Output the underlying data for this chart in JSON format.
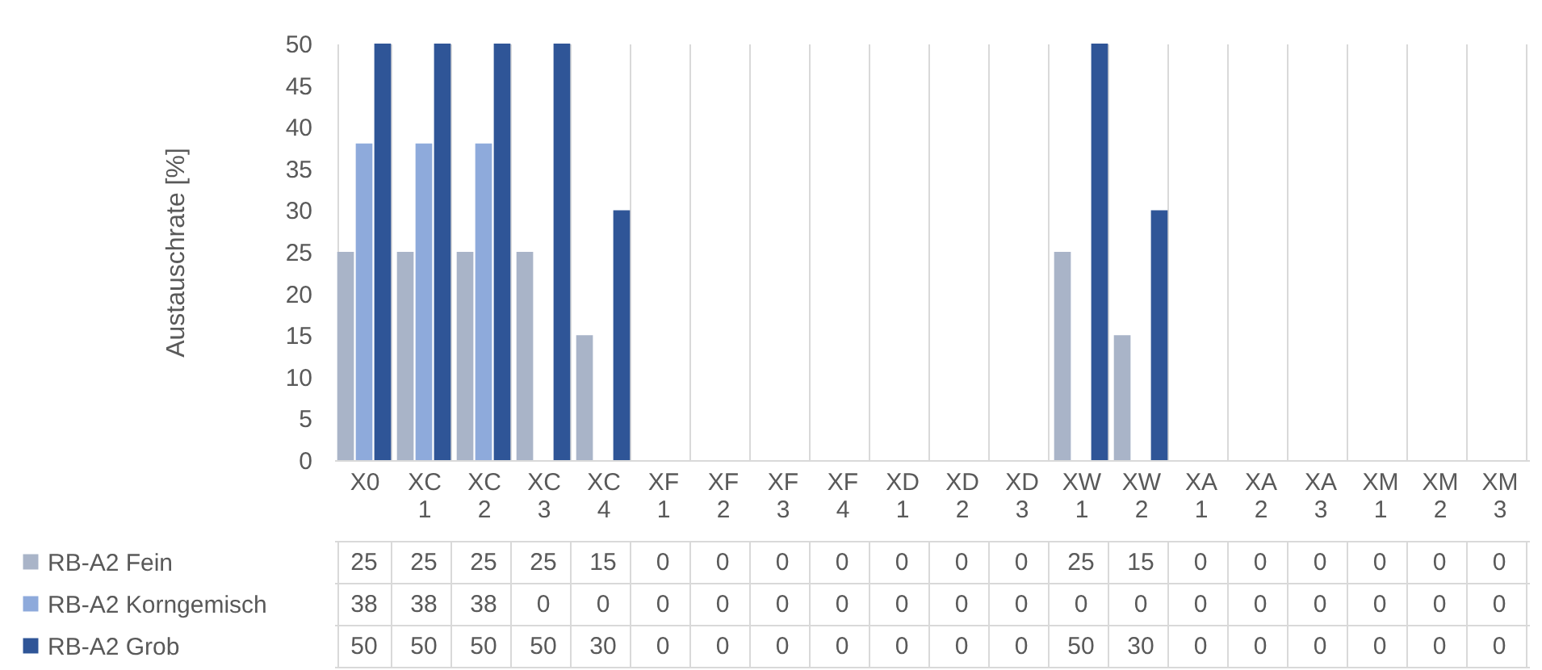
{
  "chart_data": {
    "type": "bar",
    "ylabel": "Austauschrate  [%]",
    "categories": [
      "X0",
      "XC 1",
      "XC 2",
      "XC 3",
      "XC 4",
      "XF 1",
      "XF 2",
      "XF 3",
      "XF 4",
      "XD 1",
      "XD 2",
      "XD 3",
      "XW 1",
      "XW 2",
      "XA 1",
      "XA 2",
      "XA 3",
      "XM 1",
      "XM 2",
      "XM 3"
    ],
    "series": [
      {
        "name": "RB-A2 Fein",
        "color": "#a9b4c8",
        "values": [
          25,
          25,
          25,
          25,
          15,
          0,
          0,
          0,
          0,
          0,
          0,
          0,
          25,
          15,
          0,
          0,
          0,
          0,
          0,
          0
        ]
      },
      {
        "name": "RB-A2 Korngemisch",
        "color": "#8eaadb",
        "values": [
          38,
          38,
          38,
          0,
          0,
          0,
          0,
          0,
          0,
          0,
          0,
          0,
          0,
          0,
          0,
          0,
          0,
          0,
          0,
          0
        ]
      },
      {
        "name": "RB-A2 Grob",
        "color": "#2f5597",
        "values": [
          50,
          50,
          50,
          50,
          30,
          0,
          0,
          0,
          0,
          0,
          0,
          0,
          50,
          30,
          0,
          0,
          0,
          0,
          0,
          0
        ]
      }
    ],
    "ylim": [
      0,
      50
    ],
    "yticks": [
      0,
      5,
      10,
      15,
      20,
      25,
      30,
      35,
      40,
      45,
      50
    ],
    "grid": false,
    "data_labels": true,
    "legend": "bottom left"
  }
}
